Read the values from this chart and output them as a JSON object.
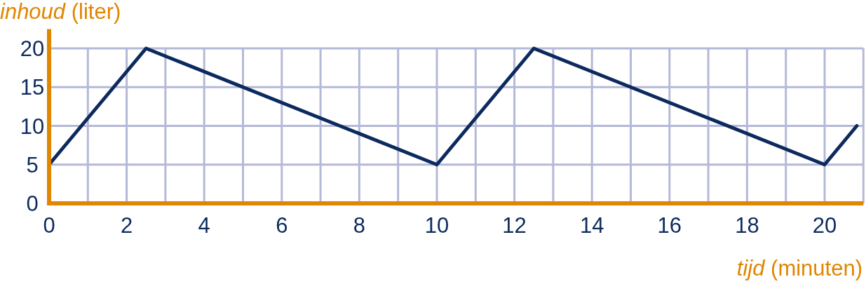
{
  "chart_data": {
    "type": "line",
    "xlabel": "tijd (minuten)",
    "ylabel": "inhoud (liter)",
    "x": [
      0,
      2.5,
      10,
      12.5,
      20,
      20.83
    ],
    "series": [
      {
        "color": "#0c2a5e",
        "values": [
          5,
          20,
          5,
          20,
          5,
          10
        ]
      }
    ],
    "xlim": [
      0,
      21
    ],
    "ylim": [
      0,
      22.5
    ],
    "xticks": [
      0,
      {
        "value": 1,
        "label": null
      },
      2,
      {
        "value": 3,
        "label": null
      },
      4,
      {
        "value": 5,
        "label": null
      },
      6,
      {
        "value": 7,
        "label": null
      },
      8,
      {
        "value": 9,
        "label": null
      },
      10,
      {
        "value": 11,
        "label": null
      },
      12,
      {
        "value": 13,
        "label": null
      },
      14,
      {
        "value": 15,
        "label": null
      },
      16,
      {
        "value": 17,
        "label": null
      },
      18,
      {
        "value": 19,
        "label": null
      },
      20,
      {
        "value": 21,
        "label": null
      }
    ],
    "yticks": [
      0,
      5,
      10,
      15,
      20
    ],
    "grid": true,
    "marker": "none",
    "line_style": "solid"
  }
}
